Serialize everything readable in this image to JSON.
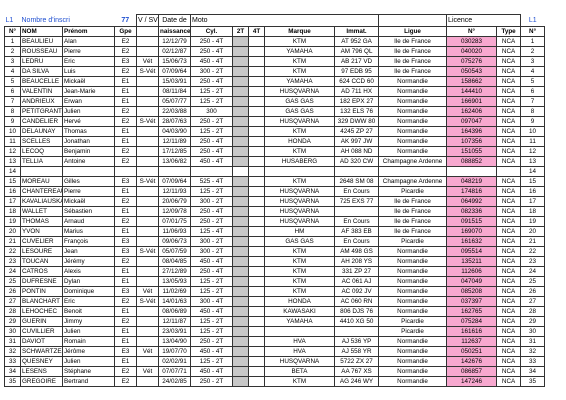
{
  "top": {
    "l1": "L1",
    "nombre": "Nombre d'inscri",
    "count": 77,
    "vsv": "V / SV",
    "date": "Date de",
    "moto": "Moto",
    "licence": "Licence",
    "l1_right": "L1"
  },
  "columns": [
    "N°",
    "NOM",
    "Prénom",
    "Gpe",
    null,
    "naissance",
    "Cyl.",
    "2T",
    "4T",
    "Marque",
    "Immat.",
    "Ligue",
    "N°",
    "Type",
    "N°"
  ],
  "rows": [
    [
      1,
      "BEAULIEU",
      "Alan",
      "E2",
      null,
      "12/12/79",
      "250 - 4T",
      "KTM",
      "AT 952 GA",
      "Ile de France",
      "030283",
      "NCA",
      1
    ],
    [
      2,
      "ROUSSEAU",
      "Pierre",
      "E2",
      null,
      "02/12/87",
      "250 - 4T",
      "YAMAHA",
      "AM 796 QL",
      "Ile de France",
      "040020",
      "NCA",
      2
    ],
    [
      3,
      "LEDRU",
      "Eric",
      "E3",
      "Vét",
      "15/06/73",
      "450 - 4T",
      "KTM",
      "AB 217 VD",
      "Ile de France",
      "075276",
      "NCA",
      3
    ],
    [
      4,
      "DA SILVA",
      "Luis",
      "E2",
      "S-Vét",
      "07/09/64",
      "300 - 2T",
      "KTM",
      "97 EDB 95",
      "Ile de France",
      "050543",
      "NCA",
      4
    ],
    [
      5,
      "BEAUCELLE",
      "Mickaël",
      "E1",
      null,
      "15/03/91",
      "250 - 4T",
      "YAMAHA",
      "624 CCD 60",
      "Normandie",
      "158662",
      "NCA",
      5
    ],
    [
      6,
      "VALENTIN",
      "Jean-Marie",
      "E1",
      null,
      "08/11/84",
      "125 - 2T",
      "HUSQVARNA",
      "AD 711 HX",
      "Normandie",
      "144410",
      "NCA",
      6
    ],
    [
      7,
      "ANDRIEUX",
      "Erwan",
      "E1",
      null,
      "05/07/77",
      "125 - 2T",
      "GAS GAS",
      "182 EPX 27",
      "Normandie",
      "166901",
      "NCA",
      7
    ],
    [
      8,
      "PETITGRANT",
      "Julien",
      "E2",
      null,
      "22/03/88",
      "300",
      "GAS GAS",
      "132 ELS 76",
      "Normandie",
      "162406",
      "NCA",
      8
    ],
    [
      9,
      "CANDELIER",
      "Hervé",
      "E2",
      "S-Vét",
      "28/07/63",
      "250 - 2T",
      "HUSQVARNA",
      "329 DWW 80",
      "Normandie",
      "097047",
      "NCA",
      9
    ],
    [
      10,
      "DELAUNAY",
      "Thomas",
      "E1",
      null,
      "04/03/90",
      "125 - 2T",
      "KTM",
      "4245 ZP 27",
      "Normandie",
      "164396",
      "NCA",
      10
    ],
    [
      11,
      "SCELLES",
      "Jonathan",
      "E1",
      null,
      "12/11/89",
      "250 - 4T",
      "HONDA",
      "AK 997 JW",
      "Normandie",
      "107356",
      "NCA",
      11
    ],
    [
      12,
      "LECOQ",
      "Benjamin",
      "E2",
      null,
      "17/12/85",
      "250 - 4T",
      "KTM",
      "AH 088 ND",
      "Normandie",
      "151055",
      "NCA",
      12
    ],
    [
      13,
      "TELLIA",
      "Antoine",
      "E2",
      null,
      "13/06/82",
      "450 - 4T",
      "HUSABERG",
      "AD 320 CW",
      "Champagne Ardenne",
      "088852",
      "NCA",
      13
    ],
    [
      14,
      null,
      null,
      null,
      null,
      null,
      null,
      null,
      null,
      null,
      null,
      null,
      14
    ],
    [
      15,
      "MOREAU",
      "Gilles",
      "E3",
      "S-Vét",
      "07/09/64",
      "525 - 4T",
      "KTM",
      "2648 SM 08",
      "Champagne Ardenne",
      "048219",
      "NCA",
      15
    ],
    [
      16,
      "CHANTEREAU",
      "Pierre",
      "E1",
      null,
      "12/11/93",
      "125 - 2T",
      "HUSQVARNA",
      "En Cours",
      "Picardie",
      "174816",
      "NCA",
      16
    ],
    [
      17,
      "KAVALIAUSKAS",
      "Mickaël",
      "E2",
      null,
      "20/06/79",
      "300 - 2T",
      "HUSQVARNA",
      "725 EXS 77",
      "Ile de France",
      "064992",
      "NCA",
      17
    ],
    [
      18,
      "WALLET",
      "Sébastien",
      "E1",
      null,
      "12/09/78",
      "250 - 4T",
      "HUSQVARNA",
      null,
      "Ile de France",
      "082336",
      "NCA",
      18
    ],
    [
      19,
      "THOMAS",
      "Arnaud",
      "E2",
      null,
      "07/01/75",
      "250 - 2T",
      "HUSQVARNA",
      "En Cours",
      "Ile de France",
      "091515",
      "NCA",
      19
    ],
    [
      20,
      "YVON",
      "Marius",
      "E1",
      null,
      "11/06/93",
      "125 - 4T",
      "HM",
      "AF 383 EB",
      "Ile de France",
      "169070",
      "NCA",
      20
    ],
    [
      21,
      "CUVELIER",
      "François",
      "E3",
      null,
      "09/06/73",
      "300 - 2T",
      "GAS GAS",
      "En Cours",
      "Picardie",
      "161632",
      "NCA",
      21
    ],
    [
      22,
      "LESOURE",
      "Jean",
      "E3",
      "S-Vét",
      "05/07/59",
      "300 - 2T",
      "KTM",
      "AM 498 GS",
      "Normandie",
      "095514",
      "NCA",
      22
    ],
    [
      23,
      "TOUCAN",
      "Jérémy",
      "E2",
      null,
      "08/04/85",
      "450 - 4T",
      "KTM",
      "AH 208 YS",
      "Normandie",
      "135211",
      "NCA",
      23
    ],
    [
      24,
      "CATROS",
      "Alexis",
      "E1",
      null,
      "27/12/89",
      "250 - 4T",
      "KTM",
      "331 ZP 27",
      "Normandie",
      "112606",
      "NCA",
      24
    ],
    [
      25,
      "DUFRESNE",
      "Dylan",
      "E1",
      null,
      "13/05/93",
      "125 - 2T",
      "KTM",
      "AC 061 AJ",
      "Normandie",
      "047049",
      "NCA",
      25
    ],
    [
      26,
      "PONTIN",
      "Dominique",
      "E3",
      "Vét",
      "11/02/69",
      "125 - 2T",
      "KTM",
      "AC 092 JV",
      "Normandie",
      "085208",
      "NCA",
      26
    ],
    [
      27,
      "BLANCHART",
      "Eric",
      "E2",
      "S-Vét",
      "14/01/63",
      "300 - 4T",
      "HONDA",
      "AC 060 RN",
      "Normandie",
      "037397",
      "NCA",
      27
    ],
    [
      28,
      "LEHOCHEC",
      "Benoit",
      "E1",
      null,
      "08/06/89",
      "450 - 4T",
      "KAWASAKI",
      "806 DJS 76",
      "Normandie",
      "162765",
      "NCA",
      28
    ],
    [
      29,
      "GUERIN",
      "Jimmy",
      "E2",
      null,
      "12/11/87",
      "125 - 2T",
      "YAMAHA",
      "4410 XG 50",
      "Picardie",
      "075284",
      "NCA",
      29
    ],
    [
      30,
      "CUVILLIER",
      "Julien",
      "E1",
      null,
      "23/03/91",
      "125 - 2T",
      null,
      null,
      "Picardie",
      "161616",
      "NCA",
      30
    ],
    [
      31,
      "DAVIOT",
      "Romain",
      "E1",
      null,
      "13/04/90",
      "250 - 2T",
      "HVA",
      "AJ 536 YP",
      "Normandie",
      "112637",
      "NCA",
      31
    ],
    [
      32,
      "SCHWARTZER",
      "Jérôme",
      "E3",
      "Vét",
      "19/07/70",
      "450 - 4T",
      "HVA",
      "AJ 558 YR",
      "Normandie",
      "050251",
      "NCA",
      32
    ],
    [
      33,
      "QUESNEY",
      "Julien",
      "E1",
      null,
      "02/02/91",
      "125 - 2T",
      "HUSQVARNA",
      "5722 ZX 27",
      "Normandie",
      "142676",
      "NCA",
      33
    ],
    [
      34,
      "LESENS",
      "Stéphane",
      "E2",
      "Vét",
      "07/07/71",
      "450 - 4T",
      "BETA",
      "AA 767 XS",
      "Normandie",
      "086857",
      "NCA",
      34
    ],
    [
      35,
      "GREGOIRE",
      "Bertrand",
      "E2",
      null,
      "24/02/85",
      "250 - 2T",
      "KTM",
      "AG 246 WY",
      "Normandie",
      "147246",
      "NCA",
      35
    ]
  ]
}
